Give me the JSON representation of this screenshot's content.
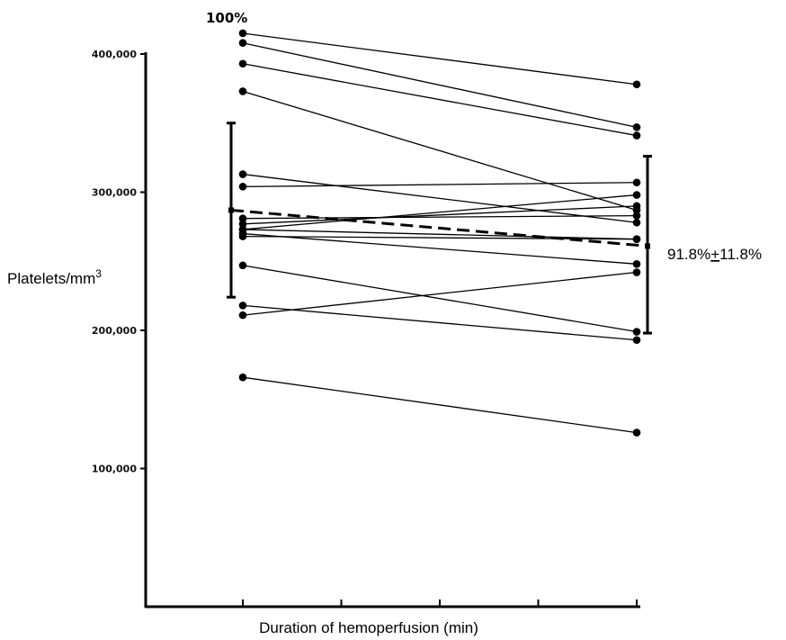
{
  "chart_data": {
    "type": "line",
    "title": "",
    "xlabel": "Duration of hemoperfusion (min)",
    "ylabel": "Platelets/mm3",
    "ylabel_main": "Platelets/mm",
    "ylabel_sup": "3",
    "ylim": [
      0,
      430000
    ],
    "y_ticks": [
      {
        "value": 100000,
        "label": "100,000"
      },
      {
        "value": 200000,
        "label": "200,000"
      },
      {
        "value": 300000,
        "label": "300,000"
      },
      {
        "value": 400000,
        "label": "400,000"
      }
    ],
    "x_tick_count": 5,
    "x_endpoints": [
      "start",
      "end"
    ],
    "series": [
      {
        "values": [
          415000,
          378000
        ]
      },
      {
        "values": [
          408000,
          347000
        ]
      },
      {
        "values": [
          393000,
          341000
        ]
      },
      {
        "values": [
          373000,
          287000
        ]
      },
      {
        "values": [
          313000,
          278000
        ]
      },
      {
        "values": [
          304000,
          307000
        ]
      },
      {
        "values": [
          281000,
          283000
        ]
      },
      {
        "values": [
          277000,
          290000
        ]
      },
      {
        "values": [
          273000,
          298000
        ]
      },
      {
        "values": [
          273000,
          266000
        ]
      },
      {
        "values": [
          270000,
          248000
        ]
      },
      {
        "values": [
          268000,
          266000
        ]
      },
      {
        "values": [
          247000,
          199000
        ]
      },
      {
        "values": [
          218000,
          193000
        ]
      },
      {
        "values": [
          211000,
          242000
        ]
      },
      {
        "values": [
          166000,
          126000
        ]
      }
    ],
    "mean": {
      "values": [
        287000,
        261000
      ],
      "style": "dashed"
    },
    "error_bars": [
      {
        "center": 287000,
        "low": 224000,
        "high": 350000
      },
      {
        "center": 261000,
        "low": 198000,
        "high": 326000
      }
    ],
    "annotations": {
      "start": "100%",
      "end_value": "91.8%",
      "end_pm": "+",
      "end_sd": "11.8%"
    },
    "grid": false,
    "legend": "none"
  }
}
